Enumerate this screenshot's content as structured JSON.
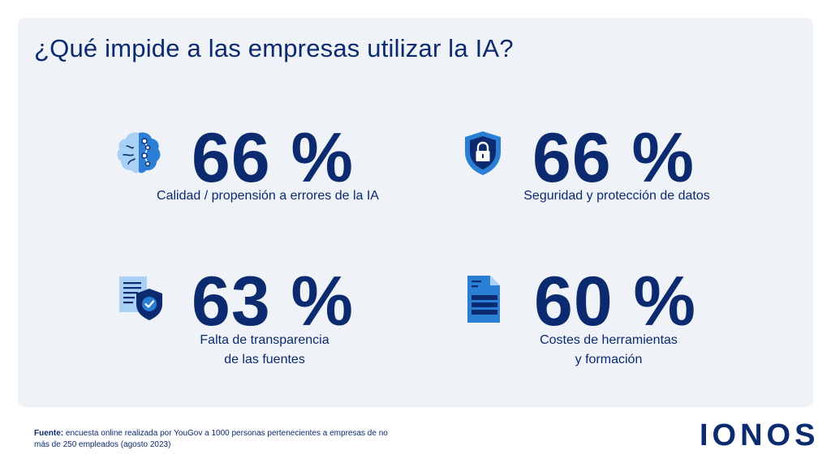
{
  "title": "¿Qué impide a las empresas utilizar la IA?",
  "chart_data": {
    "type": "table",
    "title": "¿Qué impide a las empresas utilizar la IA?",
    "unit": "%",
    "categories": [
      "Calidad / propensión a errores de la IA",
      "Seguridad y protección de datos",
      "Falta de transparencia de las fuentes",
      "Costes de herramientas y formación"
    ],
    "values": [
      66,
      66,
      63,
      60
    ]
  },
  "stats": [
    {
      "value": "66 %",
      "label": "Calidad / propensión a errores de la IA",
      "icon": "brain-icon"
    },
    {
      "value": "66 %",
      "label": "Seguridad y protección de datos",
      "icon": "shield-lock-icon"
    },
    {
      "value": "63 %",
      "label": "Falta de transparencia\nde las fuentes",
      "icon": "document-shield-icon"
    },
    {
      "value": "60 %",
      "label": "Costes de herramientas\ny formación",
      "icon": "document-icon"
    }
  ],
  "footer": {
    "source_label": "Fuente:",
    "source_text": " encuesta online realizada por YouGov a 1000 personas pertenecientes a empresas de no más de 250 empleados (agosto 2023)"
  },
  "logo": "IONOS",
  "colors": {
    "navy": "#0b2a6f",
    "blue": "#2a7fd4",
    "light_blue": "#a9d0f5",
    "panel": "#eff3f7"
  }
}
